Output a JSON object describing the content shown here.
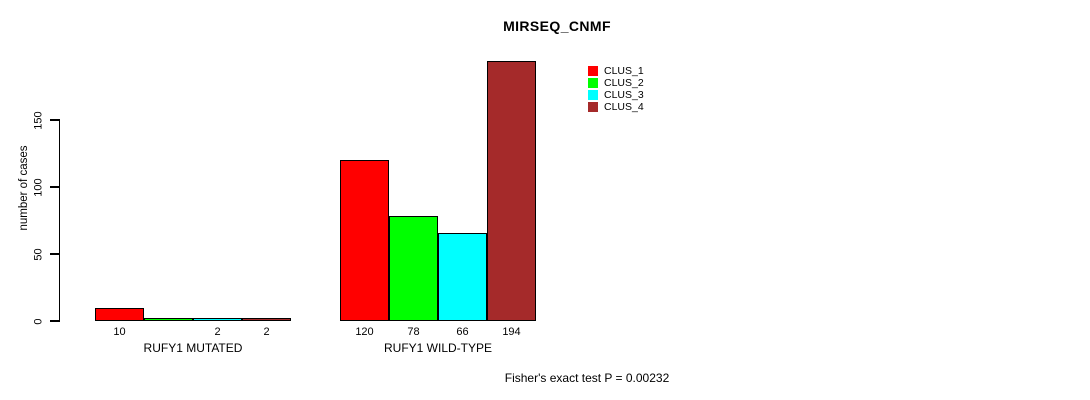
{
  "chart_data": {
    "type": "bar",
    "title": "MIRSEQ_CNMF",
    "ylabel": "number of cases",
    "xlabel": "",
    "categories": [
      "RUFY1 MUTATED",
      "RUFY1 WILD-TYPE"
    ],
    "series": [
      {
        "name": "CLUS_1",
        "color": "#FF0000",
        "values": [
          10,
          120
        ]
      },
      {
        "name": "CLUS_2",
        "color": "#00FF00",
        "values": [
          0,
          78
        ]
      },
      {
        "name": "CLUS_3",
        "color": "#00FFFF",
        "values": [
          2,
          66
        ]
      },
      {
        "name": "CLUS_4",
        "color": "#A52A2A",
        "values": [
          2,
          194
        ]
      }
    ],
    "bar_labels": [
      [
        "10",
        "",
        "2",
        "2"
      ],
      [
        "120",
        "78",
        "66",
        "194"
      ]
    ],
    "yticks": [
      0,
      50,
      100,
      150
    ],
    "ylim": [
      0,
      150
    ],
    "grid": false,
    "legend_position": "top-right",
    "annotation": "Fisher's exact test P = 0.00232"
  }
}
